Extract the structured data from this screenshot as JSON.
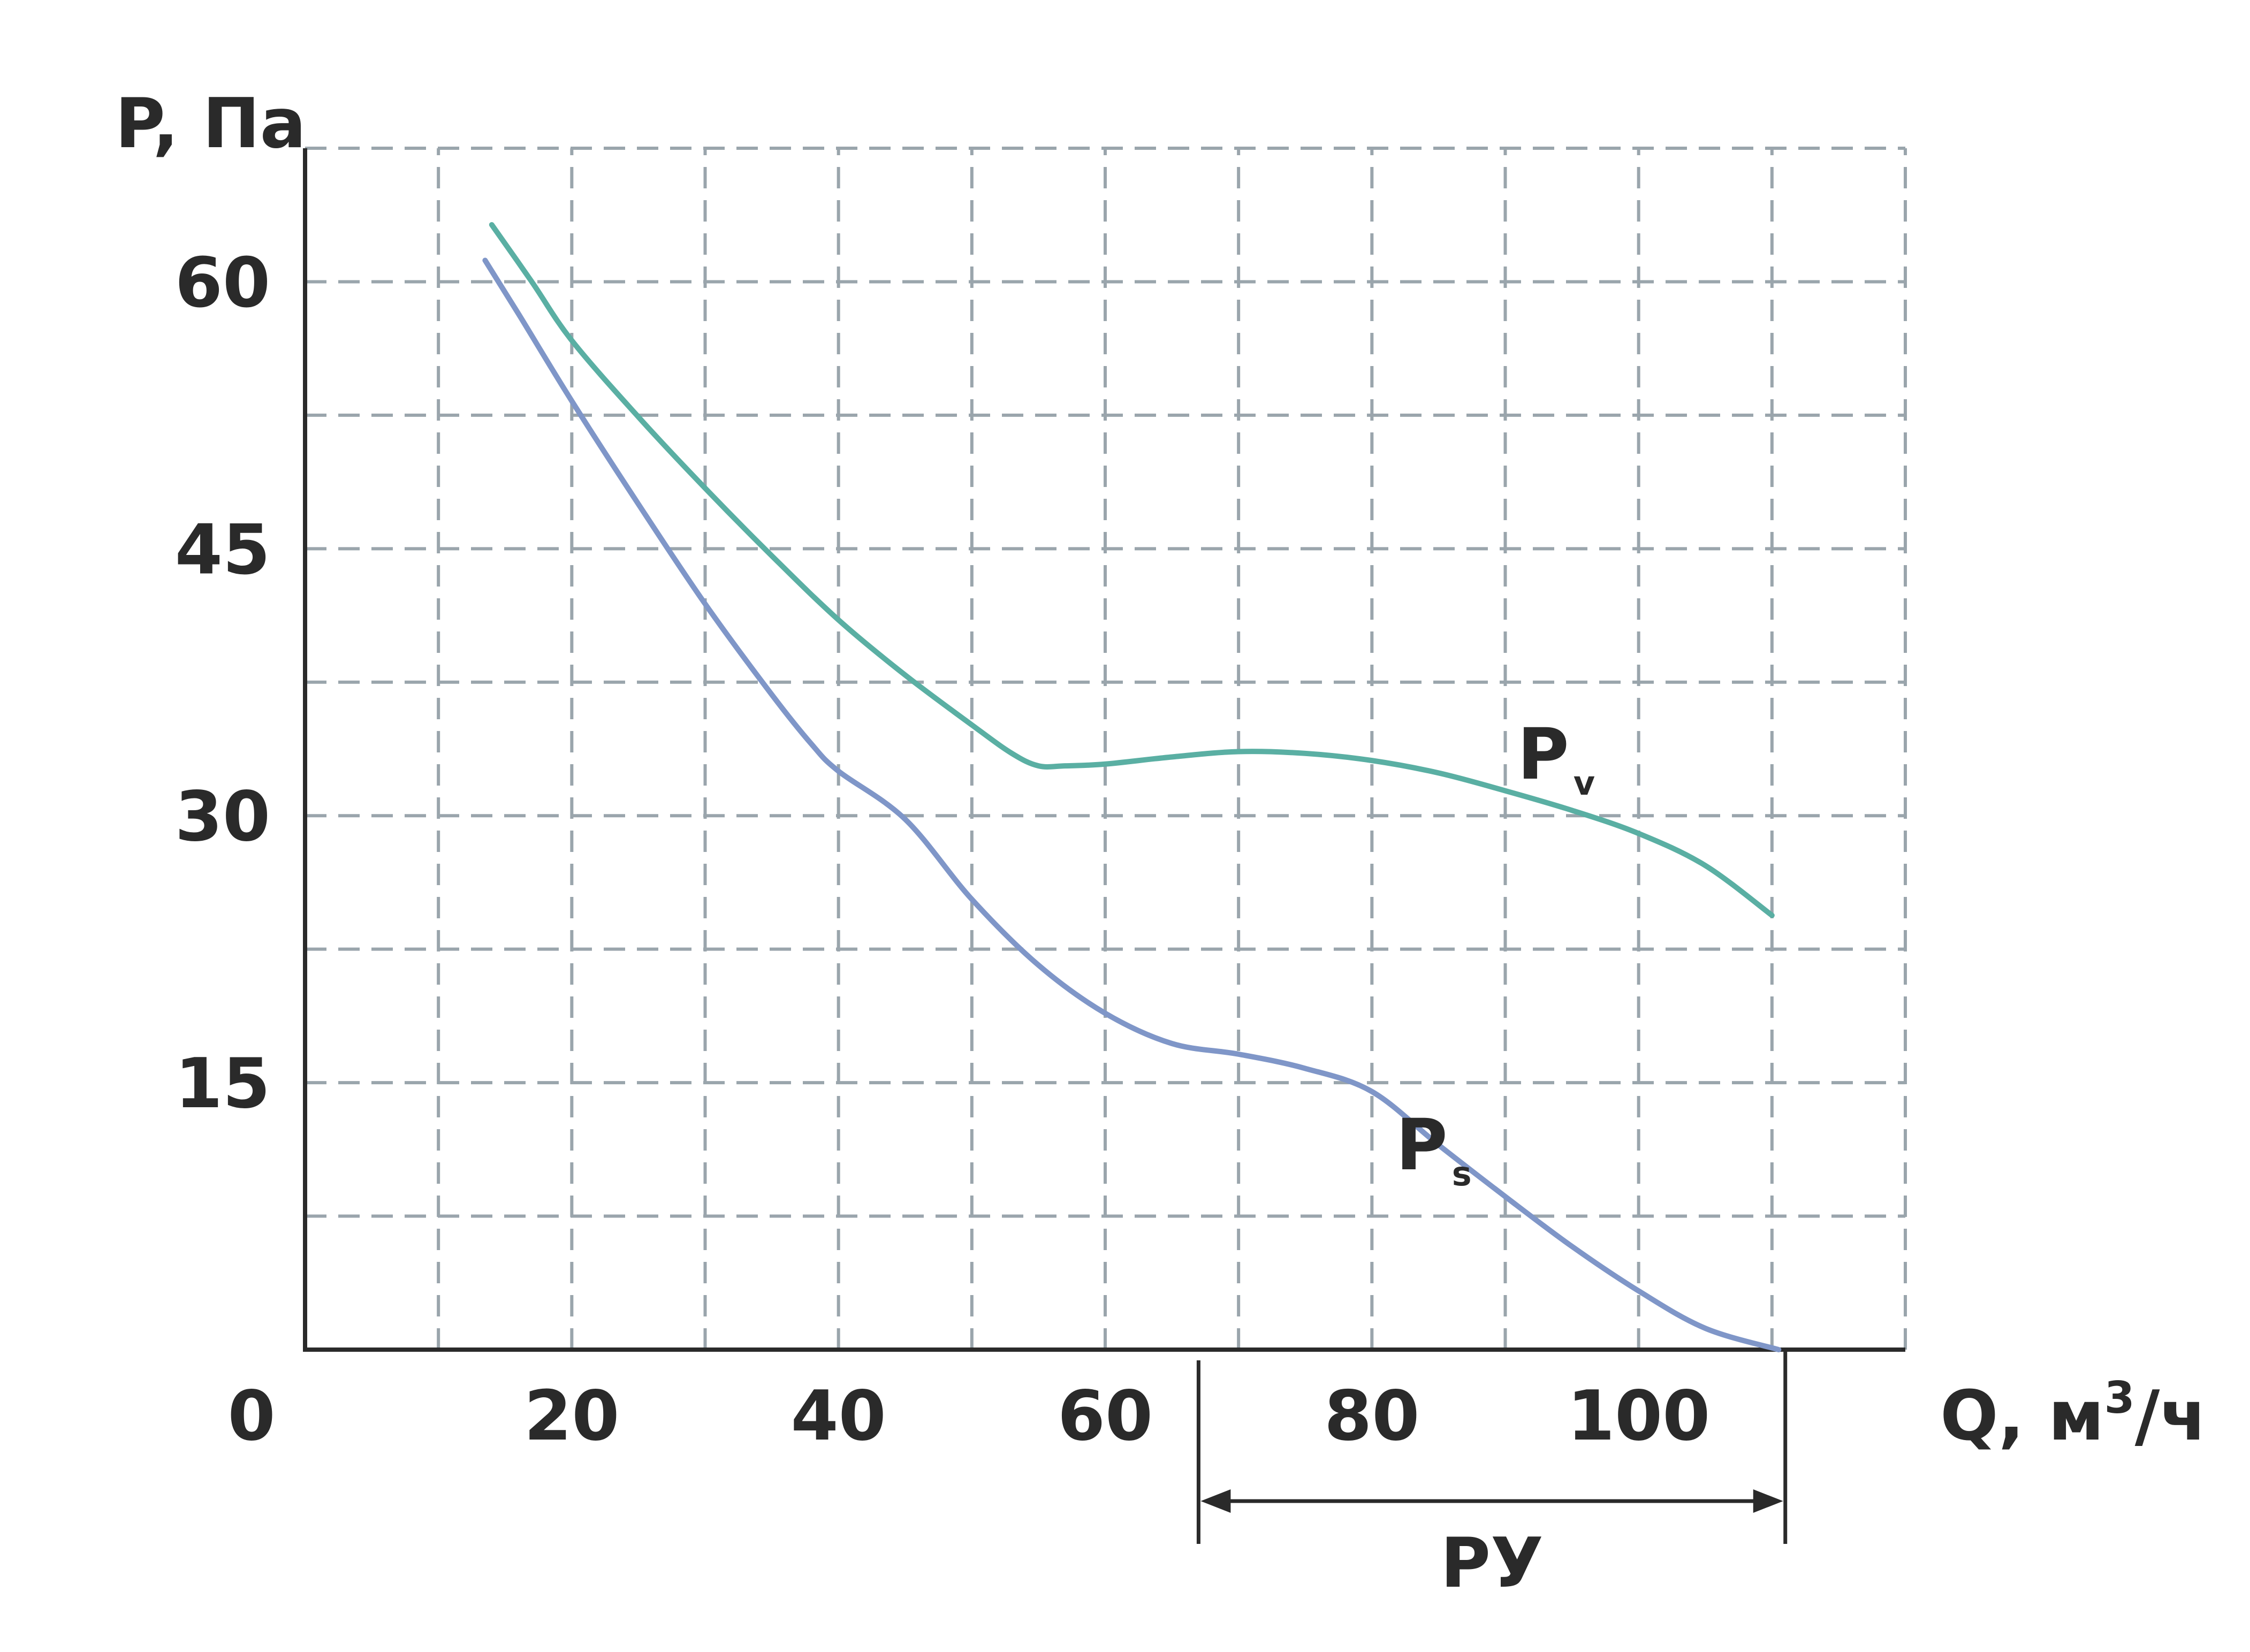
{
  "chart_data": {
    "type": "line",
    "title": "",
    "xlabel": "Q, м³/ч",
    "xlabel_parts": {
      "main": "Q, м",
      "sup": "3",
      "tail": "/ч"
    },
    "ylabel": "P, Па",
    "xlim": [
      0,
      120
    ],
    "ylim": [
      0,
      67.5
    ],
    "grid": true,
    "x_ticks": [
      {
        "value": 0,
        "label": "0"
      },
      {
        "value": 20,
        "label": "20"
      },
      {
        "value": 40,
        "label": "40"
      },
      {
        "value": 60,
        "label": "60"
      },
      {
        "value": 80,
        "label": "80"
      },
      {
        "value": 100,
        "label": "100"
      }
    ],
    "y_ticks": [
      {
        "value": 15,
        "label": "15"
      },
      {
        "value": 30,
        "label": "30"
      },
      {
        "value": 45,
        "label": "45"
      },
      {
        "value": 60,
        "label": "60"
      }
    ],
    "x_grid": [
      10,
      20,
      30,
      40,
      50,
      60,
      70,
      80,
      90,
      100,
      110,
      120
    ],
    "y_grid": [
      7.5,
      15,
      22.5,
      30,
      37.5,
      45,
      52.5,
      60,
      67.5
    ],
    "series": [
      {
        "name": "Pv",
        "label_main": "P",
        "label_sub": "v",
        "color": "#5aafa3",
        "x": [
          14,
          17,
          20,
          25,
          30,
          35,
          40,
          45,
          50,
          53,
          55,
          57,
          60,
          65,
          70,
          75,
          80,
          85,
          90,
          95,
          100,
          105,
          110
        ],
        "y": [
          63.2,
          60,
          56.7,
          52.4,
          48.4,
          44.6,
          41.0,
          37.9,
          35.1,
          33.5,
          32.8,
          32.8,
          32.9,
          33.3,
          33.6,
          33.5,
          33.1,
          32.4,
          31.4,
          30.3,
          29.0,
          27.2,
          24.4
        ]
      },
      {
        "name": "Ps",
        "label_main": "P",
        "label_sub": "s",
        "color": "#7f96c8",
        "x": [
          13.5,
          16,
          20,
          25,
          30,
          35,
          38,
          40,
          45,
          50,
          55,
          60,
          65,
          70,
          75,
          80,
          85,
          90,
          95,
          100,
          105,
          110.5
        ],
        "y": [
          61.2,
          58.2,
          53.3,
          47.5,
          41.9,
          36.8,
          34.0,
          32.5,
          29.8,
          25.3,
          21.6,
          18.9,
          17.2,
          16.6,
          15.8,
          14.5,
          11.5,
          8.6,
          5.8,
          3.3,
          1.2,
          0
        ]
      }
    ],
    "annotations": [
      {
        "text": "PУ",
        "kind": "range",
        "x_start": 67,
        "x_end": 111
      }
    ]
  }
}
